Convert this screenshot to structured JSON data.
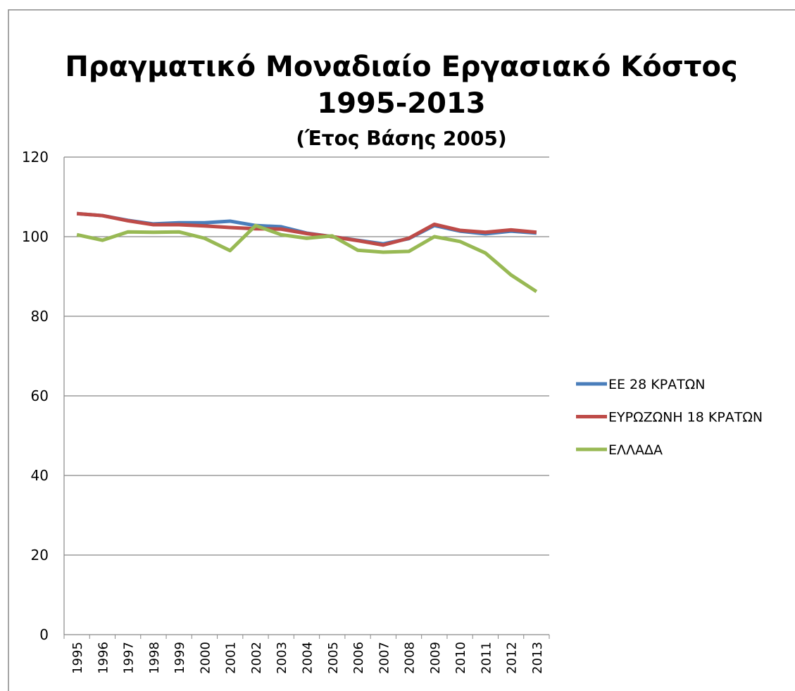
{
  "chart_data": {
    "type": "line",
    "title": [
      "Πραγματικό Μοναδιαίο Εργασιακό Κόστος",
      "1995-2013"
    ],
    "subtitle": "(Έτος Βάσης 2005)",
    "categories": [
      "1995",
      "1996",
      "1997",
      "1998",
      "1999",
      "2000",
      "2001",
      "2002",
      "2003",
      "2004",
      "2005",
      "2006",
      "2007",
      "2008",
      "2009",
      "2010",
      "2011",
      "2012",
      "2013"
    ],
    "series": [
      {
        "name": "ΕΕ 28 ΚΡΑΤΩΝ",
        "color": "#4a7ebb",
        "values": [
          105.8,
          105.3,
          104.1,
          103.2,
          103.5,
          103.5,
          103.9,
          102.8,
          102.5,
          100.9,
          100.0,
          99.1,
          98.2,
          99.5,
          102.8,
          101.4,
          100.7,
          101.4,
          100.9
        ]
      },
      {
        "name": "ΕΥΡΩΖΩΝΗ 18 ΚΡΑΤΩΝ",
        "color": "#be4b48",
        "values": [
          105.8,
          105.3,
          104.0,
          103.0,
          103.0,
          102.7,
          102.3,
          102.0,
          101.9,
          100.8,
          100.0,
          99.0,
          97.9,
          99.6,
          103.1,
          101.6,
          101.1,
          101.7,
          101.1
        ]
      },
      {
        "name": "ΕΛΛΑΔΑ",
        "color": "#98b954",
        "values": [
          100.5,
          99.1,
          101.2,
          101.1,
          101.2,
          99.6,
          96.5,
          102.8,
          100.5,
          99.6,
          100.2,
          96.6,
          96.1,
          96.3,
          100.0,
          98.8,
          95.9,
          90.4,
          86.2
        ]
      }
    ],
    "ylim": [
      0,
      120
    ],
    "yticks": [
      0,
      20,
      40,
      60,
      80,
      100,
      120
    ],
    "grid": true,
    "legend": "right"
  }
}
